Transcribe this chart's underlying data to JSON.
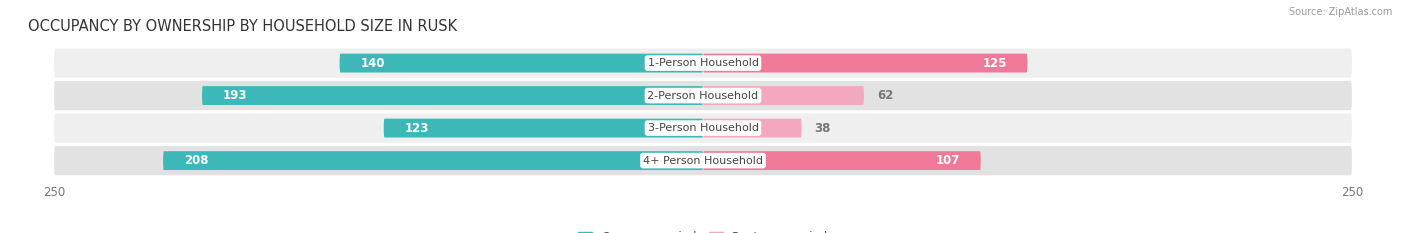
{
  "title": "OCCUPANCY BY OWNERSHIP BY HOUSEHOLD SIZE IN RUSK",
  "source": "Source: ZipAtlas.com",
  "categories": [
    "1-Person Household",
    "2-Person Household",
    "3-Person Household",
    "4+ Person Household"
  ],
  "owner_values": [
    140,
    193,
    123,
    208
  ],
  "renter_values": [
    125,
    62,
    38,
    107
  ],
  "owner_color": "#3db8b8",
  "renter_color": "#f07898",
  "renter_color_light": "#f4a8be",
  "row_bg_colors": [
    "#efefef",
    "#e2e2e2",
    "#efefef",
    "#e2e2e2"
  ],
  "max_value": 250,
  "label_color_inside_owner": "#ffffff",
  "label_color_outside_owner": "#777777",
  "label_color_inside_renter": "#ffffff",
  "label_color_outside_renter": "#777777",
  "title_fontsize": 10.5,
  "label_fontsize": 8.5,
  "category_fontsize": 8,
  "legend_fontsize": 8.5,
  "axis_fontsize": 8.5,
  "background_color": "#ffffff"
}
